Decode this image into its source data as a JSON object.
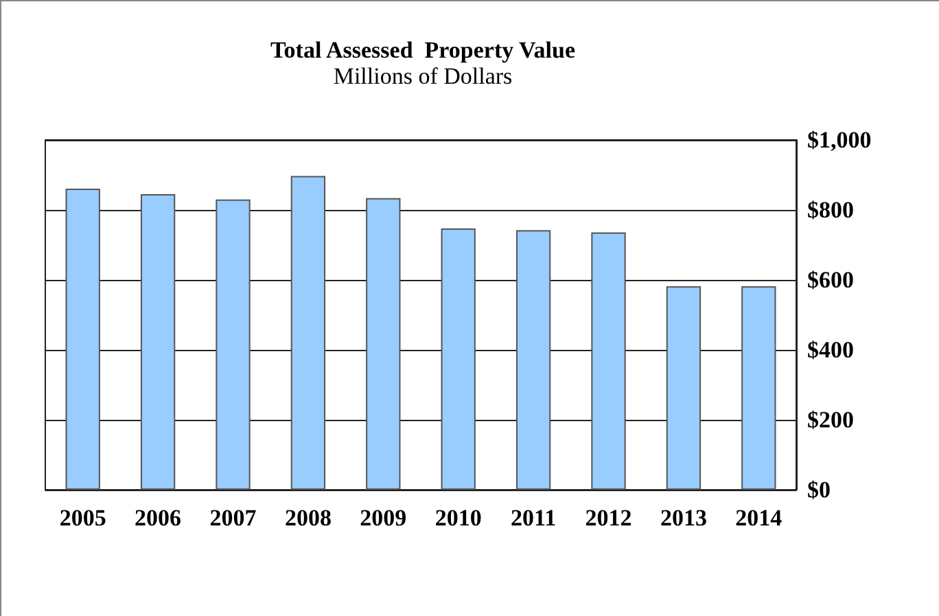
{
  "chart_data": {
    "type": "bar",
    "title": "Total Assessed  Property Value",
    "subtitle": "Millions of Dollars",
    "categories": [
      "2005",
      "2006",
      "2007",
      "2008",
      "2009",
      "2010",
      "2011",
      "2012",
      "2013",
      "2014"
    ],
    "values": [
      861,
      845,
      830,
      897,
      834,
      747,
      742,
      736,
      582,
      582
    ],
    "color": "#99ccff",
    "ylim": [
      0,
      1000
    ],
    "yticks": [
      {
        "value": 0,
        "label": "$0"
      },
      {
        "value": 200,
        "label": "$200"
      },
      {
        "value": 400,
        "label": "$400"
      },
      {
        "value": 600,
        "label": "$600"
      },
      {
        "value": 800,
        "label": "$800"
      },
      {
        "value": 1000,
        "label": "$1,000"
      }
    ],
    "grid": "y"
  }
}
